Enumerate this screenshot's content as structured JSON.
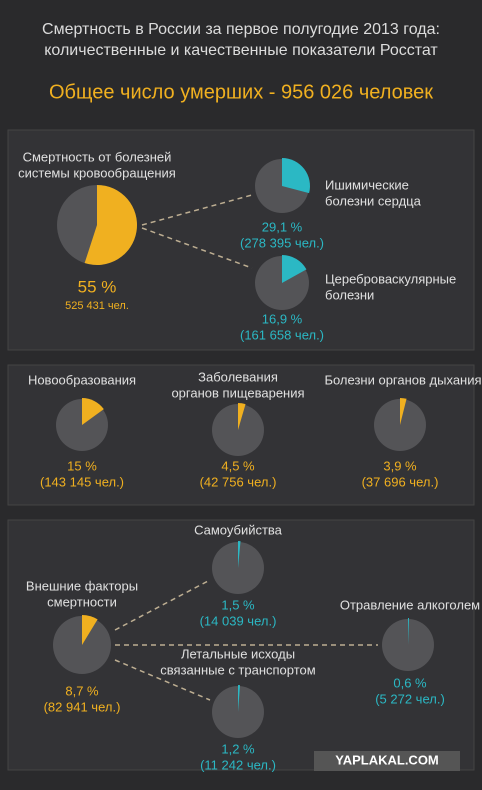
{
  "header": {
    "title": [
      "Смертность в России за первое полугодие 2013 года:",
      "количественные и качественные показатели Росстат"
    ],
    "total": "Общее число умерших - 956 026 человек"
  },
  "watermark": "YAPLAKAL.COM",
  "chart_data": [
    {
      "type": "pie",
      "title": [
        "Смертность от болезней",
        "системы кровообращения"
      ],
      "values": [
        55
      ],
      "value_labels": [
        "55 %"
      ],
      "count_label": "525 431 чел.",
      "color": "#f0b020"
    },
    {
      "type": "pie",
      "title": [
        "Ишимические",
        "болезни сердца"
      ],
      "values": [
        29.1
      ],
      "value_labels": [
        "29,1 %"
      ],
      "count_label": "(278 395 чел.)",
      "color": "#2bb8c4"
    },
    {
      "type": "pie",
      "title": [
        "Цереброваскулярные",
        "болезни"
      ],
      "values": [
        16.9
      ],
      "value_labels": [
        "16,9 %"
      ],
      "count_label": "(161 658 чел.)",
      "color": "#2bb8c4"
    },
    {
      "type": "pie",
      "title": [
        "Новообразования"
      ],
      "values": [
        15
      ],
      "value_labels": [
        "15 %"
      ],
      "count_label": "(143 145 чел.)",
      "color": "#f0b020"
    },
    {
      "type": "pie",
      "title": [
        "Заболевания",
        "органов пищеварения"
      ],
      "values": [
        4.5
      ],
      "value_labels": [
        "4,5 %"
      ],
      "count_label": "(42 756 чел.)",
      "color": "#f0b020"
    },
    {
      "type": "pie",
      "title": [
        "Болезни органов дыхания"
      ],
      "values": [
        3.9
      ],
      "value_labels": [
        "3,9 %"
      ],
      "count_label": "(37 696 чел.)",
      "color": "#f0b020"
    },
    {
      "type": "pie",
      "title": [
        "Внешние факторы",
        "смертности"
      ],
      "values": [
        8.7
      ],
      "value_labels": [
        "8,7 %"
      ],
      "count_label": "(82 941 чел.)",
      "color": "#f0b020"
    },
    {
      "type": "pie",
      "title": [
        "Самоубийства"
      ],
      "values": [
        1.5
      ],
      "value_labels": [
        "1,5 %"
      ],
      "count_label": "(14 039 чел.)",
      "color": "#2bb8c4"
    },
    {
      "type": "pie",
      "title": [
        "Отравление алкоголем"
      ],
      "values": [
        0.6
      ],
      "value_labels": [
        "0,6 %"
      ],
      "count_label": "(5 272 чел.)",
      "color": "#2bb8c4"
    },
    {
      "type": "pie",
      "title": [
        "Летальные исходы",
        "связанные с транспортом"
      ],
      "values": [
        1.2
      ],
      "value_labels": [
        "1,2 %"
      ],
      "count_label": "(11 242 чел.)",
      "color": "#2bb8c4"
    }
  ]
}
